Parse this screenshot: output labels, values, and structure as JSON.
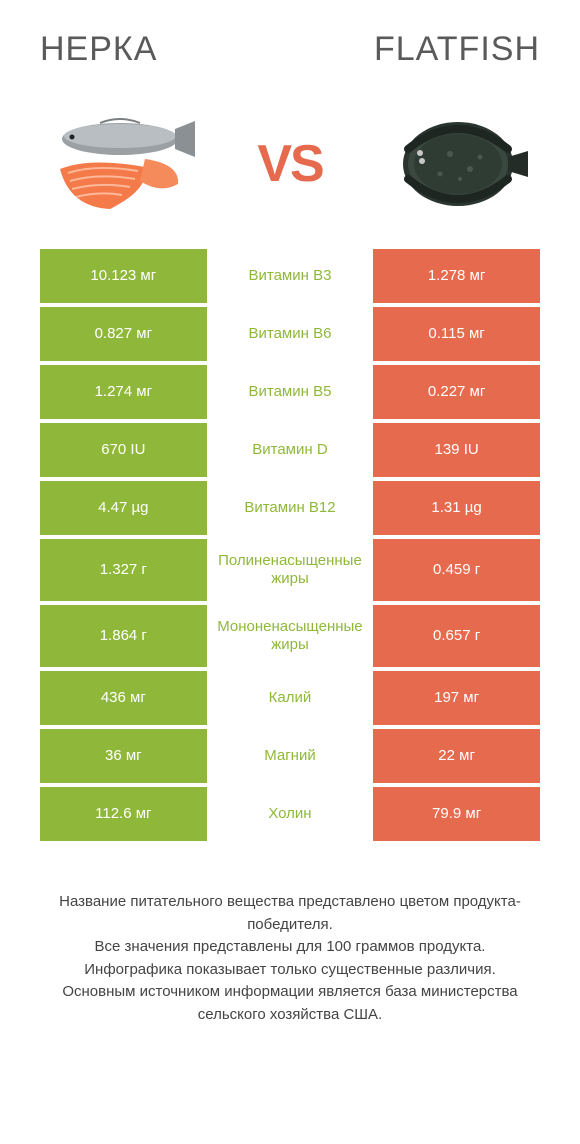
{
  "header": {
    "left_title": "НЕРКА",
    "right_title": "FLATFISH"
  },
  "vs_label": "VS",
  "colors": {
    "left_bg": "#8fb83a",
    "right_bg": "#e66a4d",
    "mid_text_left": "#8fb83a",
    "mid_text_right": "#e66a4d",
    "vs_color": "#e66a4d",
    "background": "#ffffff"
  },
  "table": {
    "rows": [
      {
        "left": "10.123 мг",
        "mid": "Витамин B3",
        "right": "1.278 мг",
        "winner": "left",
        "tall": false
      },
      {
        "left": "0.827 мг",
        "mid": "Витамин B6",
        "right": "0.115 мг",
        "winner": "left",
        "tall": false
      },
      {
        "left": "1.274 мг",
        "mid": "Витамин B5",
        "right": "0.227 мг",
        "winner": "left",
        "tall": false
      },
      {
        "left": "670 IU",
        "mid": "Витамин D",
        "right": "139 IU",
        "winner": "left",
        "tall": false
      },
      {
        "left": "4.47 µg",
        "mid": "Витамин B12",
        "right": "1.31 µg",
        "winner": "left",
        "tall": false
      },
      {
        "left": "1.327 г",
        "mid": "Полиненасыщенные жиры",
        "right": "0.459 г",
        "winner": "left",
        "tall": true
      },
      {
        "left": "1.864 г",
        "mid": "Мононенасыщенные жиры",
        "right": "0.657 г",
        "winner": "left",
        "tall": true
      },
      {
        "left": "436 мг",
        "mid": "Калий",
        "right": "197 мг",
        "winner": "left",
        "tall": false
      },
      {
        "left": "36 мг",
        "mid": "Магний",
        "right": "22 мг",
        "winner": "left",
        "tall": false
      },
      {
        "left": "112.6 мг",
        "mid": "Холин",
        "right": "79.9 мг",
        "winner": "left",
        "tall": false
      }
    ]
  },
  "footnote": "Название питательного вещества представлено цветом продукта-победителя.\nВсе значения представлены для 100 граммов продукта.\nИнфографика показывает только существенные различия.\nОсновным источником информации является база министерства сельского хозяйства США."
}
